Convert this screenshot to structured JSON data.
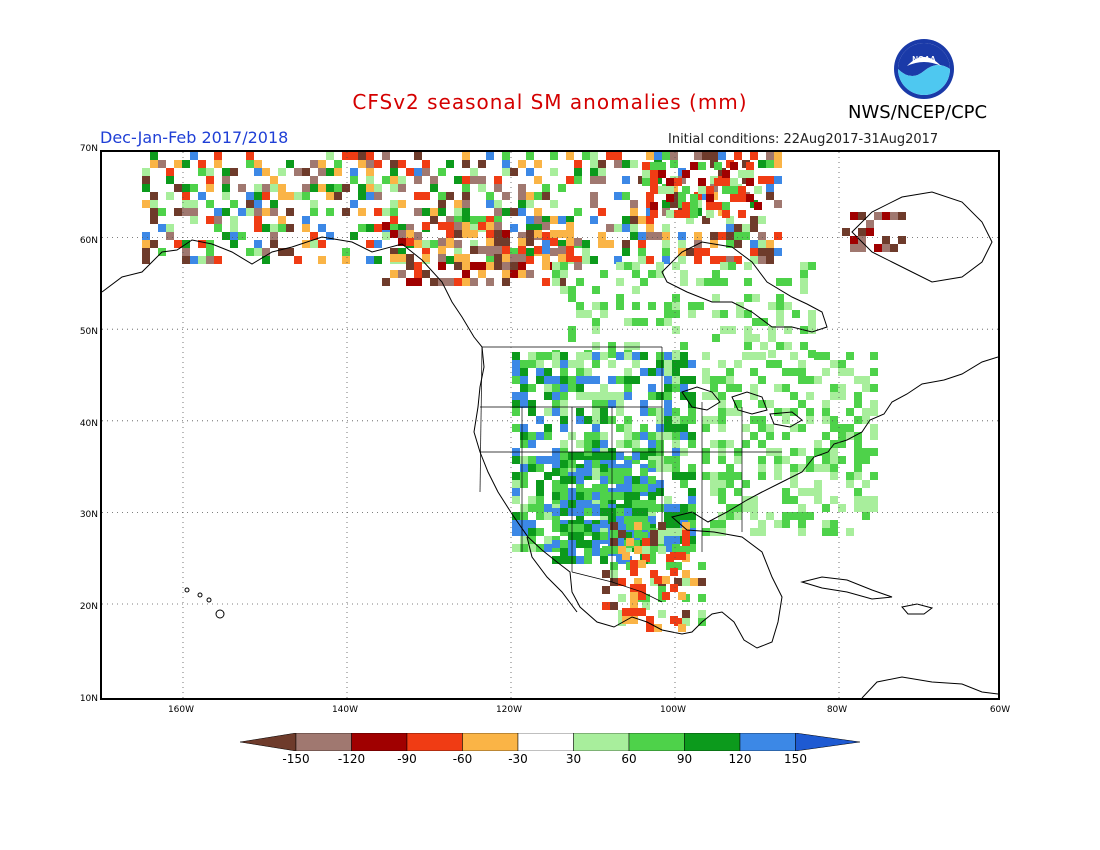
{
  "header": {
    "title": "CFSv2 seasonal SM anomalies (mm)",
    "organization": "NWS/NCEP/CPC",
    "period": "Dec-Jan-Feb 2017/2018",
    "initial_conditions": "Initial conditions: 22Aug2017-31Aug2017",
    "logo_text": "NOAA"
  },
  "map": {
    "lat_labels": [
      "70N",
      "60N",
      "50N",
      "40N",
      "30N",
      "20N",
      "10N"
    ],
    "lon_labels": [
      "160W",
      "140W",
      "120W",
      "100W",
      "80W",
      "60W"
    ],
    "grid": "dotted",
    "land_color": "#ffffff",
    "ocean_color": "#ffffff"
  },
  "colorbar": {
    "labels": [
      "-150",
      "-120",
      "-90",
      "-60",
      "-30",
      "30",
      "60",
      "90",
      "120",
      "150"
    ],
    "colors": [
      "#6e3b2b",
      "#a07870",
      "#a00000",
      "#f03c14",
      "#fab446",
      "#ffffff",
      "#a8ee9c",
      "#4ed24a",
      "#0c9a1c",
      "#3c88e6",
      "#1e5ad2"
    ]
  }
}
